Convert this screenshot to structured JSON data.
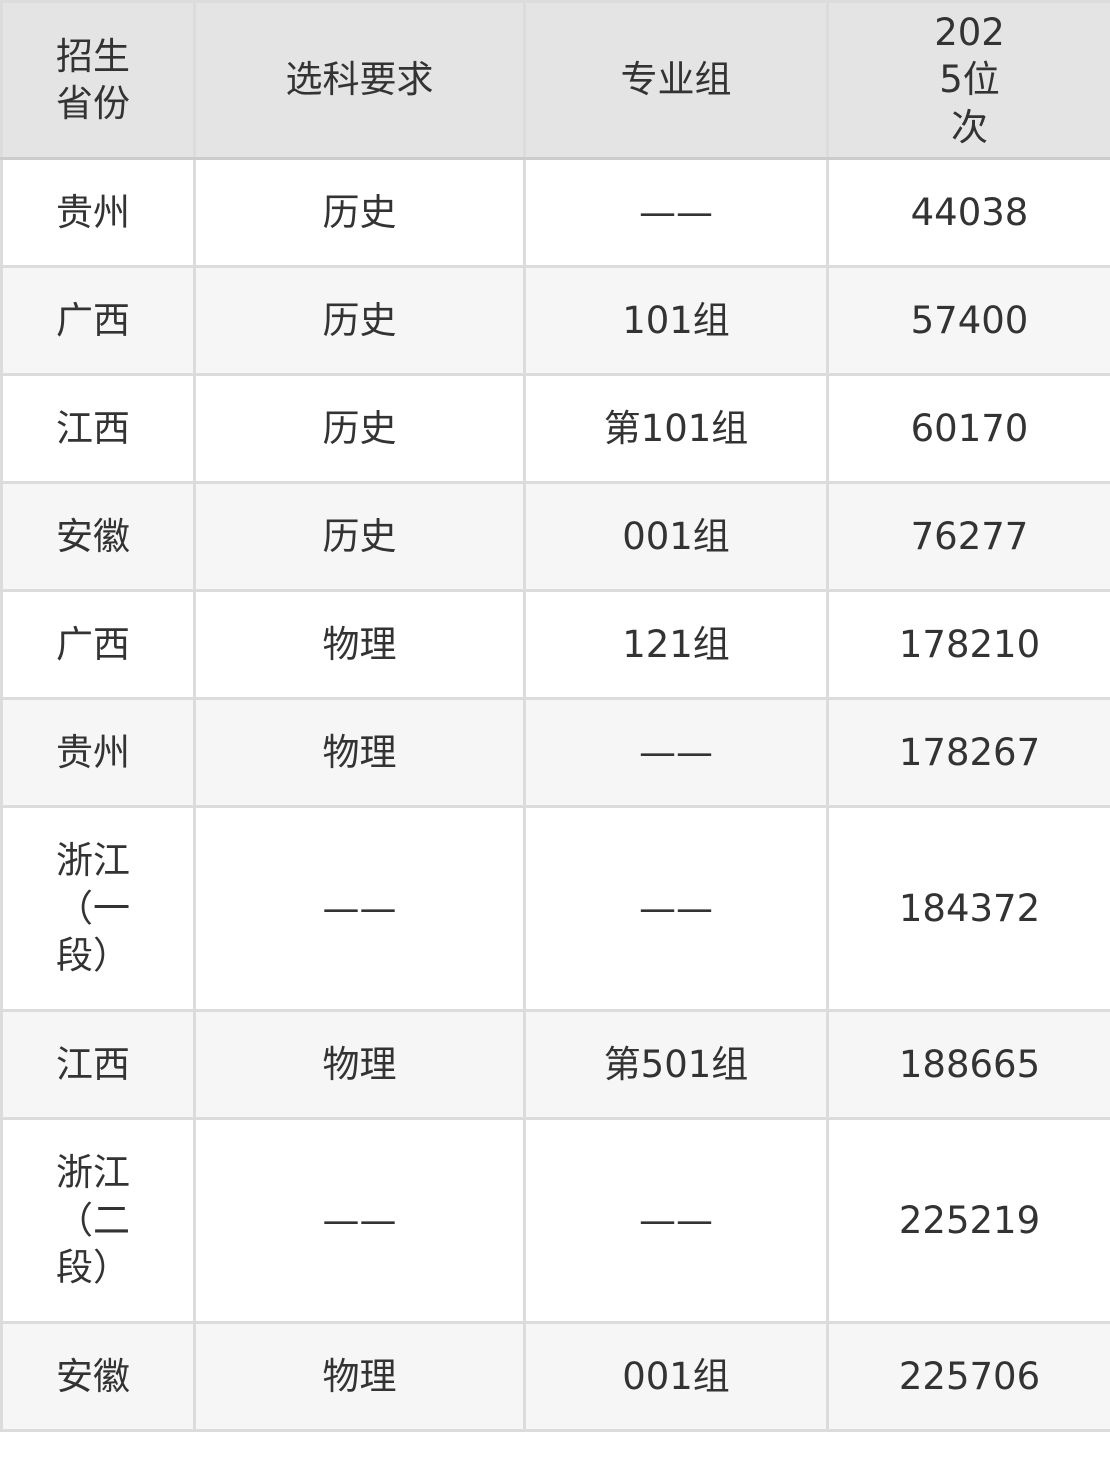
{
  "table": {
    "headers": [
      "招生省份",
      "选科要求",
      "专业组",
      "2025位次"
    ],
    "rows": [
      {
        "province": "贵州",
        "subject": "历史",
        "group": "——",
        "rank": "44038"
      },
      {
        "province": "广西",
        "subject": "历史",
        "group": "101组",
        "rank": "57400"
      },
      {
        "province": "江西",
        "subject": "历史",
        "group": "第101组",
        "rank": "60170"
      },
      {
        "province": "安徽",
        "subject": "历史",
        "group": "001组",
        "rank": "76277"
      },
      {
        "province": "广西",
        "subject": "物理",
        "group": "121组",
        "rank": "178210"
      },
      {
        "province": "贵州",
        "subject": "物理",
        "group": "——",
        "rank": "178267"
      },
      {
        "province": "浙江（一段）",
        "subject": "——",
        "group": "——",
        "rank": "184372"
      },
      {
        "province": "江西",
        "subject": "物理",
        "group": "第501组",
        "rank": "188665"
      },
      {
        "province": "浙江（二段）",
        "subject": "——",
        "group": "——",
        "rank": "225219"
      },
      {
        "province": "安徽",
        "subject": "物理",
        "group": "001组",
        "rank": "225706"
      }
    ]
  }
}
